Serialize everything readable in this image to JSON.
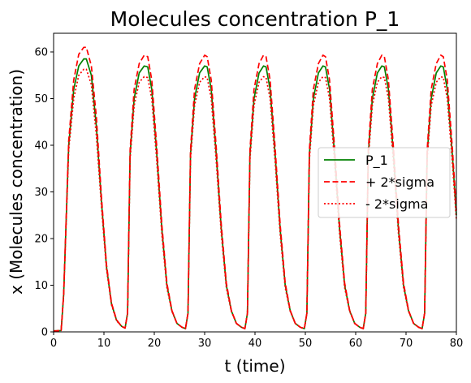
{
  "chart_data": {
    "type": "line",
    "title": "Molecules concentration P_1",
    "xlabel": "t (time)",
    "ylabel": "x (Molecules concentration)",
    "xlim": [
      0,
      80
    ],
    "ylim": [
      0,
      64
    ],
    "xticks": [
      0,
      10,
      20,
      30,
      40,
      50,
      60,
      70,
      80
    ],
    "yticks": [
      0,
      10,
      20,
      30,
      40,
      50,
      60
    ],
    "grid": false,
    "legend_position": "center-right",
    "series": [
      {
        "name": "P_1",
        "color": "#008000",
        "style": "solid",
        "x": [
          0,
          1.5,
          2,
          3,
          4,
          5,
          6,
          6.5,
          7.5,
          8.5,
          9.5,
          10.5,
          11.5,
          12.5,
          13.5,
          14.2,
          14.7,
          15.2,
          16,
          17,
          18,
          18.7,
          19.5,
          20.5,
          21.5,
          22.5,
          23.5,
          24.5,
          25.5,
          26.2,
          26.7,
          27.2,
          28,
          29,
          30,
          30.5,
          31.3,
          32.3,
          33.3,
          34.3,
          35.3,
          36.3,
          37.3,
          38,
          38.5,
          39,
          39.8,
          40.8,
          41.7,
          42.2,
          43,
          44,
          45,
          46,
          47,
          48,
          49,
          49.8,
          50.3,
          50.8,
          51.6,
          52.6,
          53.5,
          54,
          54.8,
          55.8,
          56.8,
          57.8,
          58.8,
          59.8,
          60.8,
          61.5,
          62,
          62.5,
          63.3,
          64.3,
          65.2,
          65.7,
          66.5,
          67.5,
          68.5,
          69.5,
          70.5,
          71.5,
          72.5,
          73.2,
          73.7,
          74.2,
          75,
          76,
          76.9,
          77.4,
          78.2,
          79.2,
          80
        ],
        "y": [
          0.2,
          0.3,
          8,
          40,
          52,
          57,
          58.5,
          58.5,
          55,
          44,
          28,
          14,
          6,
          2.5,
          1.2,
          0.8,
          4,
          38,
          50,
          55.5,
          57,
          56.8,
          52,
          38,
          22,
          10,
          4.5,
          1.8,
          1,
          0.7,
          4,
          38,
          50,
          55.5,
          57,
          56.8,
          52,
          38,
          22,
          10,
          4.5,
          1.8,
          1,
          0.7,
          4,
          38,
          50,
          55.5,
          57,
          56.8,
          52,
          38,
          22,
          10,
          4.5,
          1.8,
          1,
          0.7,
          4,
          38,
          50,
          55.5,
          57,
          56.8,
          52,
          38,
          22,
          10,
          4.5,
          1.8,
          1,
          0.7,
          4,
          38,
          50,
          55.5,
          57,
          56.8,
          52,
          38,
          22,
          10,
          4.5,
          1.8,
          1,
          0.7,
          4,
          38,
          50,
          55.5,
          57,
          56.8,
          52,
          38,
          25
        ]
      },
      {
        "name": "+ 2*sigma",
        "color": "#ff0000",
        "style": "dashed",
        "x": [
          0,
          1.5,
          2,
          3,
          4,
          5,
          6,
          6.5,
          7.5,
          8.5,
          9.5,
          10.5,
          11.5,
          12.5,
          13.5,
          14.2,
          14.7,
          15.2,
          16,
          17,
          18,
          18.7,
          19.5,
          20.5,
          21.5,
          22.5,
          23.5,
          24.5,
          25.5,
          26.2,
          26.7,
          27.2,
          28,
          29,
          30,
          30.5,
          31.3,
          32.3,
          33.3,
          34.3,
          35.3,
          36.3,
          37.3,
          38,
          38.5,
          39,
          39.8,
          40.8,
          41.7,
          42.2,
          43,
          44,
          45,
          46,
          47,
          48,
          49,
          49.8,
          50.3,
          50.8,
          51.6,
          52.6,
          53.5,
          54,
          54.8,
          55.8,
          56.8,
          57.8,
          58.8,
          59.8,
          60.8,
          61.5,
          62,
          62.5,
          63.3,
          64.3,
          65.2,
          65.7,
          66.5,
          67.5,
          68.5,
          69.5,
          70.5,
          71.5,
          72.5,
          73.2,
          73.7,
          74.2,
          75,
          76,
          76.9,
          77.4,
          78.2,
          79.2,
          80
        ],
        "y": [
          0.2,
          0.3,
          8,
          41,
          54,
          59.5,
          61,
          61,
          57,
          46,
          29,
          14.5,
          6.2,
          2.6,
          1.2,
          0.8,
          4,
          39,
          52,
          57.5,
          59.3,
          59,
          54,
          39.5,
          23,
          10.5,
          4.6,
          1.8,
          1,
          0.7,
          4,
          39,
          52,
          57.5,
          59.3,
          59,
          54,
          39.5,
          23,
          10.5,
          4.6,
          1.8,
          1,
          0.7,
          4,
          39,
          52,
          57.5,
          59.3,
          59,
          54,
          39.5,
          23,
          10.5,
          4.6,
          1.8,
          1,
          0.7,
          4,
          39,
          52,
          57.5,
          59.3,
          59,
          54,
          39.5,
          23,
          10.5,
          4.6,
          1.8,
          1,
          0.7,
          4,
          39,
          52,
          57.5,
          59.3,
          59,
          54,
          39.5,
          23,
          10.5,
          4.6,
          1.8,
          1,
          0.7,
          4,
          39,
          52,
          57.5,
          59.3,
          59,
          54,
          39.5,
          26
        ]
      },
      {
        "name": "- 2*sigma",
        "color": "#ff0000",
        "style": "dotted",
        "x": [
          0,
          1.5,
          2,
          3,
          4,
          5,
          6,
          6.5,
          7.5,
          8.5,
          9.5,
          10.5,
          11.5,
          12.5,
          13.5,
          14.2,
          14.7,
          15.2,
          16,
          17,
          18,
          18.7,
          19.5,
          20.5,
          21.5,
          22.5,
          23.5,
          24.5,
          25.5,
          26.2,
          26.7,
          27.2,
          28,
          29,
          30,
          30.5,
          31.3,
          32.3,
          33.3,
          34.3,
          35.3,
          36.3,
          37.3,
          38,
          38.5,
          39,
          39.8,
          40.8,
          41.7,
          42.2,
          43,
          44,
          45,
          46,
          47,
          48,
          49,
          49.8,
          50.3,
          50.8,
          51.6,
          52.6,
          53.5,
          54,
          54.8,
          55.8,
          56.8,
          57.8,
          58.8,
          59.8,
          60.8,
          61.5,
          62,
          62.5,
          63.3,
          64.3,
          65.2,
          65.7,
          66.5,
          67.5,
          68.5,
          69.5,
          70.5,
          71.5,
          72.5,
          73.2,
          73.7,
          74.2,
          75,
          76,
          76.9,
          77.4,
          78.2,
          79.2,
          80
        ],
        "y": [
          0.2,
          0.3,
          8,
          39,
          50,
          55,
          56.3,
          56.3,
          53,
          42,
          27,
          13.5,
          5.8,
          2.4,
          1.2,
          0.8,
          4,
          37,
          48.5,
          53.5,
          54.7,
          54.5,
          50,
          36.5,
          21,
          9.5,
          4.4,
          1.8,
          1,
          0.7,
          4,
          37,
          48.5,
          53.5,
          54.7,
          54.5,
          50,
          36.5,
          21,
          9.5,
          4.4,
          1.8,
          1,
          0.7,
          4,
          37,
          48.5,
          53.5,
          54.7,
          54.5,
          50,
          36.5,
          21,
          9.5,
          4.4,
          1.8,
          1,
          0.7,
          4,
          37,
          48.5,
          53.5,
          54.7,
          54.5,
          50,
          36.5,
          21,
          9.5,
          4.4,
          1.8,
          1,
          0.7,
          4,
          37,
          48.5,
          53.5,
          54.7,
          54.5,
          50,
          36.5,
          21,
          9.5,
          4.4,
          1.8,
          1,
          0.7,
          4,
          37,
          48.5,
          53.5,
          54.7,
          54.5,
          50,
          36.5,
          24
        ]
      }
    ]
  }
}
